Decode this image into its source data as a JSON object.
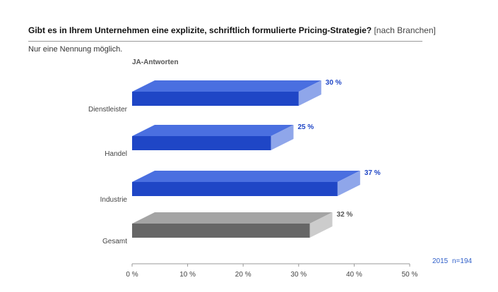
{
  "header": {
    "title": "Gibt es in Ihrem Unternehmen eine explizite, schriftlich formulierte Pricing-Strategie?",
    "title_suffix": "[nach Branchen]",
    "note": "Nur eine Nennung möglich."
  },
  "footer": {
    "year": "2015",
    "sample": "n=194"
  },
  "chart_data": {
    "type": "bar",
    "orientation": "horizontal",
    "style": "3d",
    "series_label": "JA-Antworten",
    "categories": [
      "Dienstleister",
      "Handel",
      "Industrie",
      "Gesamt"
    ],
    "values": [
      30,
      25,
      37,
      32
    ],
    "value_labels": [
      "30 %",
      "25 %",
      "37 %",
      "32 %"
    ],
    "xlim": [
      0,
      50
    ],
    "ticks": [
      0,
      10,
      20,
      30,
      40,
      50
    ],
    "tick_labels": [
      "0 %",
      "10 %",
      "20 %",
      "30 %",
      "40 %",
      "50 %"
    ],
    "grid": false,
    "colors": {
      "industry_front": "#1f46c6",
      "industry_top": "#4a6fe0",
      "industry_side": "#8fa6ea",
      "industry_label": "#1f46c6",
      "total_front": "#666666",
      "total_top": "#a4a4a4",
      "total_side": "#cccccc",
      "total_label": "#555555",
      "axis": "#999999",
      "footer": "#2f5fc9"
    }
  }
}
